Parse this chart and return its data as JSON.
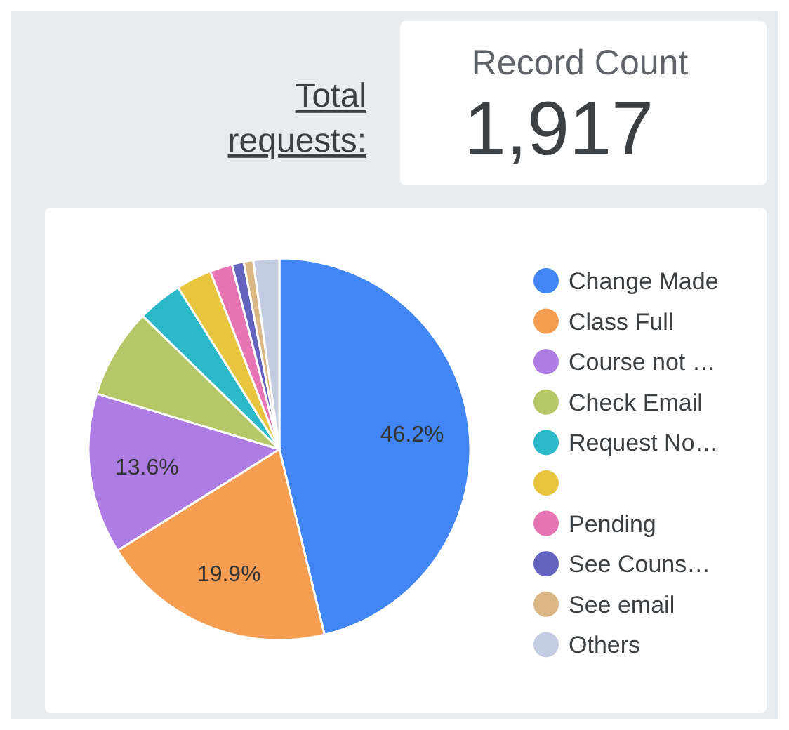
{
  "chart_data": [
    {
      "type": "other",
      "title": "Record Count",
      "annotations": [
        "Total requests:",
        "1,917"
      ]
    },
    {
      "type": "pie",
      "categories": [
        "Change Made",
        "Class Full",
        "Course not …",
        "Check Email",
        "Request No…",
        null,
        "Pending",
        "See Couns…",
        "See email",
        "Others"
      ],
      "values": [
        46.2,
        19.9,
        13.6,
        7.6,
        3.8,
        3.0,
        1.9,
        1.0,
        0.8,
        2.2
      ],
      "value_labels": [
        "46.2%",
        "19.9%",
        "13.6%",
        null,
        null,
        null,
        null,
        null,
        null,
        null
      ],
      "colors": [
        "#4285f4",
        "#f59e52",
        "#ae7de4",
        "#b6c767",
        "#2bb8c9",
        "#e8c53e",
        "#e774b3",
        "#6363bf",
        "#dbb786",
        "#c4cce2"
      ],
      "legend": "right"
    }
  ]
}
